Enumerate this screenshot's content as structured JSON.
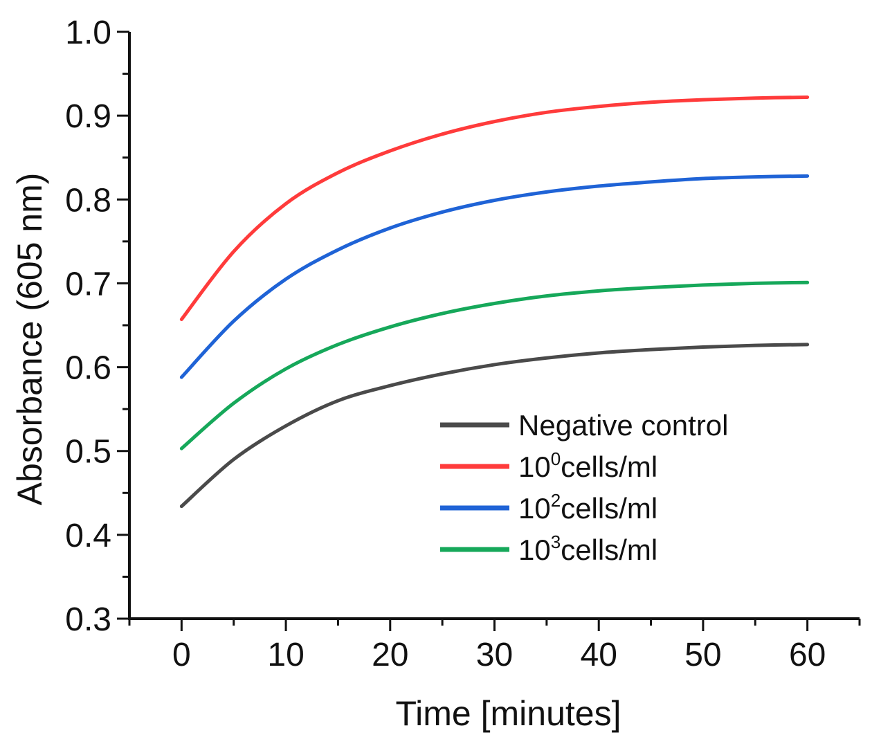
{
  "chart_data": {
    "type": "line",
    "xlabel": "Time [minutes]",
    "ylabel": "Absorbance (605 nm)",
    "xlim": [
      -5,
      65
    ],
    "ylim": [
      0.3,
      1.0
    ],
    "xticks": [
      0,
      10,
      20,
      30,
      40,
      50,
      60
    ],
    "yticks": [
      0.3,
      0.4,
      0.5,
      0.6,
      0.7,
      0.8,
      0.9,
      1.0
    ],
    "x": [
      0,
      5,
      10,
      15,
      20,
      25,
      30,
      35,
      40,
      45,
      50,
      55,
      60
    ],
    "grid": false,
    "legend_position": "bottom-right",
    "series": [
      {
        "name": "Negative control",
        "label_base": "Negative control",
        "label_sup": "",
        "label_suffix": "",
        "color": "#4a4a4a",
        "values": [
          0.434,
          0.49,
          0.53,
          0.56,
          0.578,
          0.592,
          0.603,
          0.611,
          0.617,
          0.621,
          0.624,
          0.626,
          0.627
        ]
      },
      {
        "name": "10^0cells/ml",
        "label_base": "10",
        "label_sup": "0",
        "label_suffix": "cells/ml",
        "color": "#ff3b3b",
        "values": [
          0.657,
          0.738,
          0.795,
          0.832,
          0.858,
          0.878,
          0.893,
          0.904,
          0.911,
          0.916,
          0.919,
          0.921,
          0.922
        ]
      },
      {
        "name": "10^2cells/ml",
        "label_base": "10",
        "label_sup": "2",
        "label_suffix": "cells/ml",
        "color": "#1f63d6",
        "values": [
          0.588,
          0.655,
          0.705,
          0.74,
          0.766,
          0.785,
          0.799,
          0.809,
          0.816,
          0.821,
          0.825,
          0.827,
          0.828
        ]
      },
      {
        "name": "10^3cells/ml",
        "label_base": "10",
        "label_sup": "3",
        "label_suffix": "cells/ml",
        "color": "#16a85a",
        "values": [
          0.503,
          0.557,
          0.598,
          0.627,
          0.648,
          0.664,
          0.676,
          0.685,
          0.691,
          0.695,
          0.698,
          0.7,
          0.701
        ]
      }
    ]
  }
}
